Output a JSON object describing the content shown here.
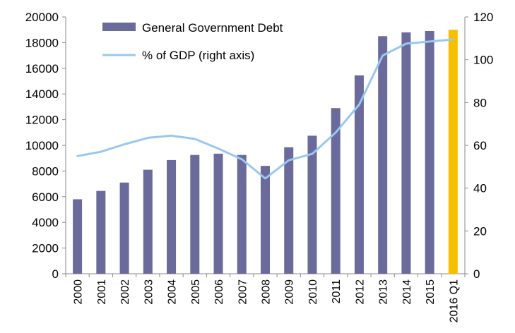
{
  "chart_data": {
    "type": "bar",
    "categories": [
      "2000",
      "2001",
      "2002",
      "2003",
      "2004",
      "2005",
      "2006",
      "2007",
      "2008",
      "2009",
      "2010",
      "2011",
      "2012",
      "2013",
      "2014",
      "2015",
      "2016 Q1"
    ],
    "series": [
      {
        "name": "General Government Debt",
        "type": "bar",
        "axis": "left",
        "color": "#6a6a9b",
        "highlight_color": "#f7bf00",
        "highlight_index": 16,
        "values": [
          5800,
          6450,
          7100,
          8100,
          8850,
          9250,
          9350,
          9250,
          8400,
          9850,
          10750,
          12900,
          15450,
          18500,
          18800,
          18900,
          19000
        ]
      },
      {
        "name": "% of GDP (right axis)",
        "type": "line",
        "axis": "right",
        "color": "#99c7f2",
        "values": [
          55,
          57,
          60.5,
          63.5,
          64.5,
          63,
          58.5,
          53.5,
          44.5,
          53,
          56,
          66,
          79,
          102,
          107.5,
          108.5,
          109.5
        ]
      }
    ],
    "y_left": {
      "min": 0,
      "max": 20000,
      "ticks": [
        "0",
        "2000",
        "4000",
        "6000",
        "8000",
        "10000",
        "12000",
        "14000",
        "16000",
        "18000",
        "20000"
      ]
    },
    "y_right": {
      "min": 0,
      "max": 120,
      "ticks": [
        "0",
        "20",
        "40",
        "60",
        "80",
        "100",
        "120"
      ]
    },
    "legend": {
      "placement": "top-left",
      "entries": [
        {
          "label": "General Government Debt",
          "type": "bar"
        },
        {
          "label": "% of GDP (right axis)",
          "type": "line"
        }
      ]
    },
    "grid": false,
    "title": "",
    "xlabel": "",
    "ylabel": ""
  }
}
